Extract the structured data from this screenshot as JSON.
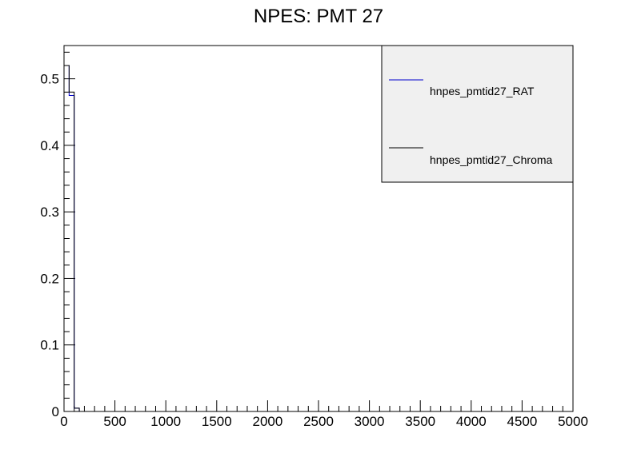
{
  "chart_data": {
    "type": "histogram-line",
    "title": "NPES: PMT 27",
    "xlim": [
      0,
      5000
    ],
    "ylim": [
      0,
      0.55
    ],
    "x_ticks": [
      0,
      500,
      1000,
      1500,
      2000,
      2500,
      3000,
      3500,
      4000,
      4500,
      5000
    ],
    "y_ticks": [
      0,
      0.1,
      0.2,
      0.3,
      0.4,
      0.5
    ],
    "x_tick_labels": [
      "0",
      "500",
      "1000",
      "1500",
      "2000",
      "2500",
      "3000",
      "3500",
      "4000",
      "4500",
      "5000"
    ],
    "y_tick_labels": [
      "0",
      "0.1",
      "0.2",
      "0.3",
      "0.4",
      "0.5"
    ],
    "bin_width": 50,
    "legend_position": "top-right",
    "series": [
      {
        "name": "hnpes_pmtid27_RAT",
        "color": "#0000cc",
        "bins": [
          {
            "x0": 0,
            "x1": 50,
            "y": 0.52
          },
          {
            "x0": 50,
            "x1": 100,
            "y": 0.475
          },
          {
            "x0": 100,
            "x1": 150,
            "y": 0.005
          }
        ]
      },
      {
        "name": "hnpes_pmtid27_Chroma",
        "color": "#000000",
        "bins": [
          {
            "x0": 0,
            "x1": 50,
            "y": 0.52
          },
          {
            "x0": 50,
            "x1": 100,
            "y": 0.48
          },
          {
            "x0": 100,
            "x1": 150,
            "y": 0.005
          }
        ]
      }
    ]
  }
}
